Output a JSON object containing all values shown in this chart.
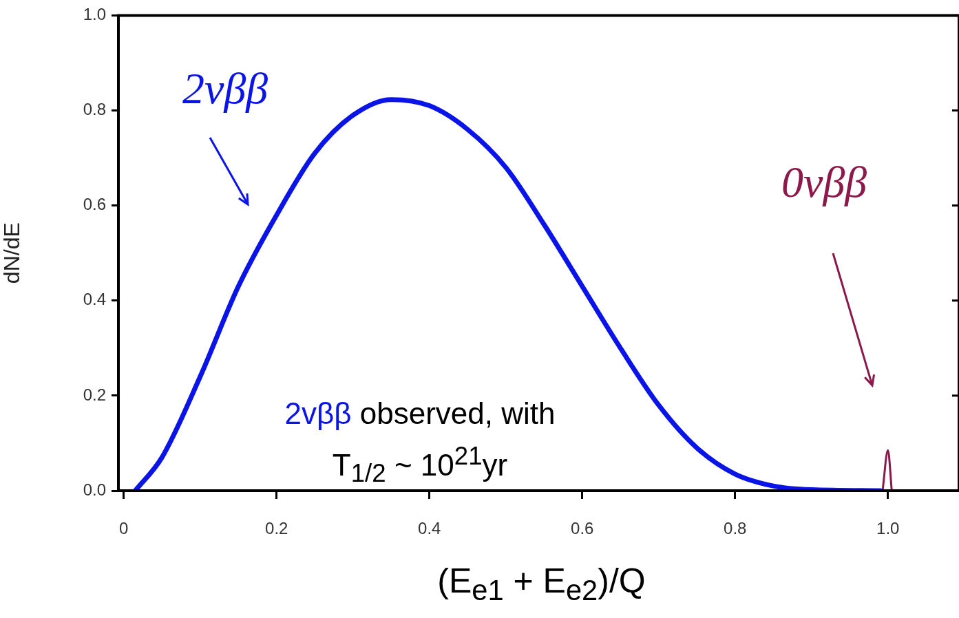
{
  "chart_data": {
    "type": "line",
    "xlabel": "(E$_{e1}$ + E$_{e2}$)/Q",
    "ylabel": "dN/dE",
    "xlim": [
      -0.007,
      1.093
    ],
    "ylim": [
      0,
      1.0
    ],
    "xticks": [
      {
        "value": 0,
        "label": "0"
      },
      0.2,
      0.4,
      0.6,
      0.8,
      {
        "value": 1,
        "label": "1.0"
      }
    ],
    "yticks": [
      {
        "value": 0,
        "label": "0.0"
      },
      0.2,
      0.4,
      0.6,
      0.8,
      {
        "value": 1,
        "label": "1.0"
      }
    ],
    "series": [
      {
        "name": "2vββ",
        "color": "#0a14e6",
        "x": [
          0.015,
          0.05,
          0.1,
          0.15,
          0.2,
          0.25,
          0.3,
          0.35,
          0.4,
          0.45,
          0.5,
          0.55,
          0.6,
          0.65,
          0.7,
          0.75,
          0.8,
          0.85,
          0.9,
          0.99
        ],
        "values": [
          0,
          0.07,
          0.24,
          0.43,
          0.58,
          0.71,
          0.79,
          0.823,
          0.81,
          0.76,
          0.68,
          0.56,
          0.43,
          0.3,
          0.18,
          0.09,
          0.035,
          0.01,
          0.002,
          0
        ]
      },
      {
        "name": "0vββ",
        "color": "#8b1a4a",
        "x": [
          0.993,
          1.0,
          1.005
        ],
        "values": [
          0,
          0.085,
          0
        ]
      }
    ],
    "annotations": [
      "2vββ observed, with T$_{1/2}$ ~ 10$^{21}$yr"
    ],
    "legend": false,
    "grid": false,
    "marker": "none",
    "line_style": "solid"
  }
}
